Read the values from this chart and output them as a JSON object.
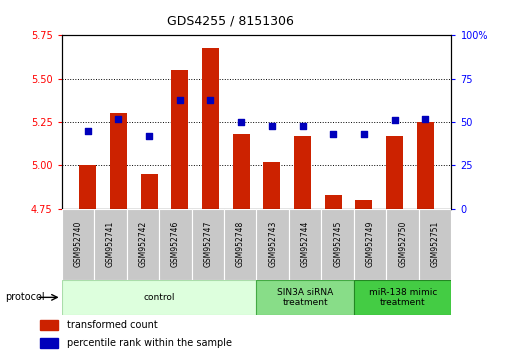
{
  "title": "GDS4255 / 8151306",
  "samples": [
    "GSM952740",
    "GSM952741",
    "GSM952742",
    "GSM952746",
    "GSM952747",
    "GSM952748",
    "GSM952743",
    "GSM952744",
    "GSM952745",
    "GSM952749",
    "GSM952750",
    "GSM952751"
  ],
  "transformed_count": [
    5.0,
    5.3,
    4.95,
    5.55,
    5.68,
    5.18,
    5.02,
    5.17,
    4.83,
    4.8,
    5.17,
    5.25
  ],
  "percentile_rank": [
    45,
    52,
    42,
    63,
    63,
    50,
    48,
    48,
    43,
    43,
    51,
    52
  ],
  "ylim_left": [
    4.75,
    5.75
  ],
  "ylim_right": [
    0,
    100
  ],
  "yticks_left": [
    4.75,
    5.0,
    5.25,
    5.5,
    5.75
  ],
  "yticks_right": [
    0,
    25,
    50,
    75,
    100
  ],
  "bar_color": "#cc2200",
  "dot_color": "#0000bb",
  "bar_bottom": 4.75,
  "groups": [
    {
      "label": "control",
      "start": 0,
      "end": 6,
      "color": "#ddffdd",
      "edge_color": "#aaddaa"
    },
    {
      "label": "SIN3A siRNA\ntreatment",
      "start": 6,
      "end": 9,
      "color": "#88dd88",
      "edge_color": "#44aa44"
    },
    {
      "label": "miR-138 mimic\ntreatment",
      "start": 9,
      "end": 12,
      "color": "#44cc44",
      "edge_color": "#228822"
    }
  ],
  "protocol_label": "protocol"
}
